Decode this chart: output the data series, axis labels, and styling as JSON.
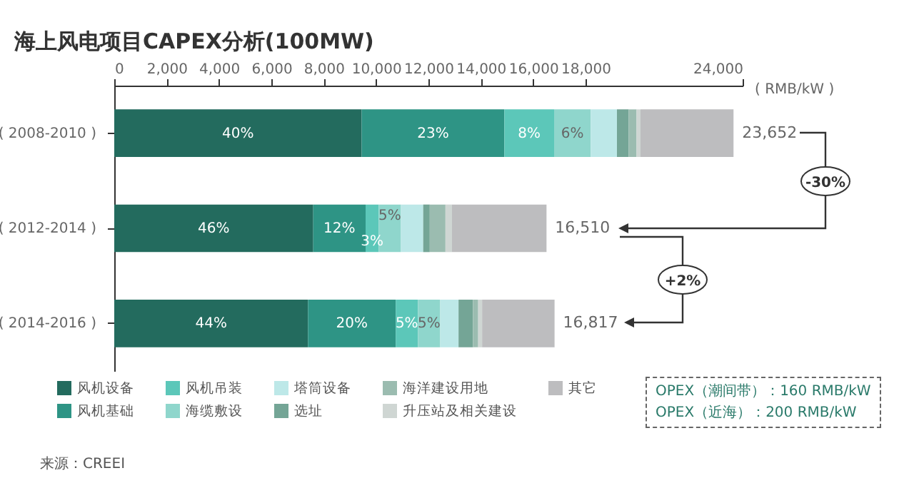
{
  "chart_data": {
    "type": "bar",
    "orientation": "horizontal",
    "stacked": true,
    "title": "海上风电项目CAPEX分析(100MW)",
    "xlabel": "( RMB/kW )",
    "categories": [
      "( 2008-2010 )",
      "( 2012-2014 )",
      "( 2014-2016 )"
    ],
    "xlim": [
      0,
      24000
    ],
    "xticks": [
      0,
      {
        "value": 2000,
        "label": "2,000"
      },
      {
        "value": 4000,
        "label": "4,000"
      },
      {
        "value": 6000,
        "label": "6,000"
      },
      {
        "value": 8000,
        "label": "8,000"
      },
      {
        "value": 10000,
        "label": "10,000"
      },
      {
        "value": 12000,
        "label": "12,000"
      },
      {
        "value": 14000,
        "label": "14,000"
      },
      {
        "value": 16000,
        "label": "16,000"
      },
      {
        "value": 18000,
        "label": "18,000"
      },
      {
        "value": 24000,
        "label": "24,000"
      }
    ],
    "series": [
      {
        "name": "风机设备",
        "color": "#236b5e",
        "values": [
          9450,
          7600,
          7400
        ]
      },
      {
        "name": "风机基础",
        "color": "#2e9485",
        "values": [
          5450,
          2000,
          3350
        ]
      },
      {
        "name": "风机吊装",
        "color": "#5cc7b9",
        "values": [
          1900,
          500,
          850
        ]
      },
      {
        "name": "海缆敷设",
        "color": "#8fd6cc",
        "values": [
          1400,
          850,
          850
        ]
      },
      {
        "name": "塔筒设备",
        "color": "#bde8e8",
        "values": [
          1000,
          850,
          700
        ]
      },
      {
        "name": "选址",
        "color": "#74a596",
        "values": [
          450,
          250,
          550
        ]
      },
      {
        "name": "海洋建设用地",
        "color": "#9bbcb0",
        "values": [
          300,
          600,
          200
        ]
      },
      {
        "name": "升压站及相关建设",
        "color": "#cfd6d3",
        "values": [
          150,
          250,
          150
        ]
      },
      {
        "name": "其它",
        "color": "#bdbdbf",
        "values": [
          3552,
          3610,
          2767
        ]
      }
    ],
    "totals": [
      "23,652",
      "16,510",
      "16,817"
    ],
    "legend": "bottom",
    "annotations": [
      "-30%",
      "+2%",
      "来源：CREEI",
      "OPEX（潮间带）：160 RMB/kW",
      "OPEX（近海）：200 RMB/kW",
      "40%",
      "23%",
      "8%",
      "6%",
      "46%",
      "12%",
      "3%",
      "5%",
      "44%",
      "20%",
      "5%",
      "5%"
    ]
  }
}
